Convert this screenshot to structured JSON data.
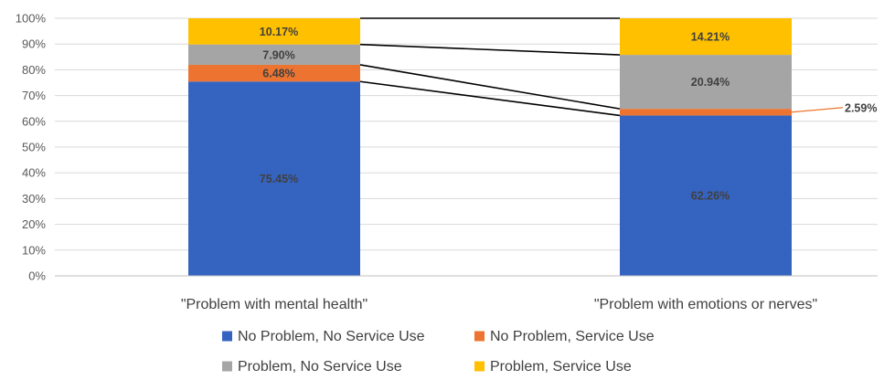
{
  "chart_data": {
    "type": "bar",
    "stacked": true,
    "normalized_percent": true,
    "categories": [
      "\"Problem with mental health\"",
      "\"Problem with emotions or nerves\""
    ],
    "series": [
      {
        "name": "No Problem, No Service Use",
        "color": "#3563C0",
        "values": [
          75.45,
          62.26
        ],
        "labels": [
          "75.45%",
          "62.26%"
        ]
      },
      {
        "name": "No Problem, Service Use",
        "color": "#ED7430",
        "values": [
          6.48,
          2.59
        ],
        "labels": [
          "6.48%",
          "2.59%"
        ]
      },
      {
        "name": "Problem, No Service Use",
        "color": "#A5A5A5",
        "values": [
          7.9,
          20.94
        ],
        "labels": [
          "7.90%",
          "20.94%"
        ]
      },
      {
        "name": "Problem, Service Use",
        "color": "#FFC000",
        "values": [
          10.17,
          14.21
        ],
        "labels": [
          "10.17%",
          "14.21%"
        ]
      }
    ],
    "y_ticks": [
      "0%",
      "10%",
      "20%",
      "30%",
      "40%",
      "50%",
      "60%",
      "70%",
      "80%",
      "90%",
      "100%"
    ],
    "ylim": [
      0,
      100
    ],
    "grid": true,
    "series_lines": true,
    "legend_position": "bottom",
    "title": "",
    "xlabel": "",
    "ylabel": ""
  }
}
